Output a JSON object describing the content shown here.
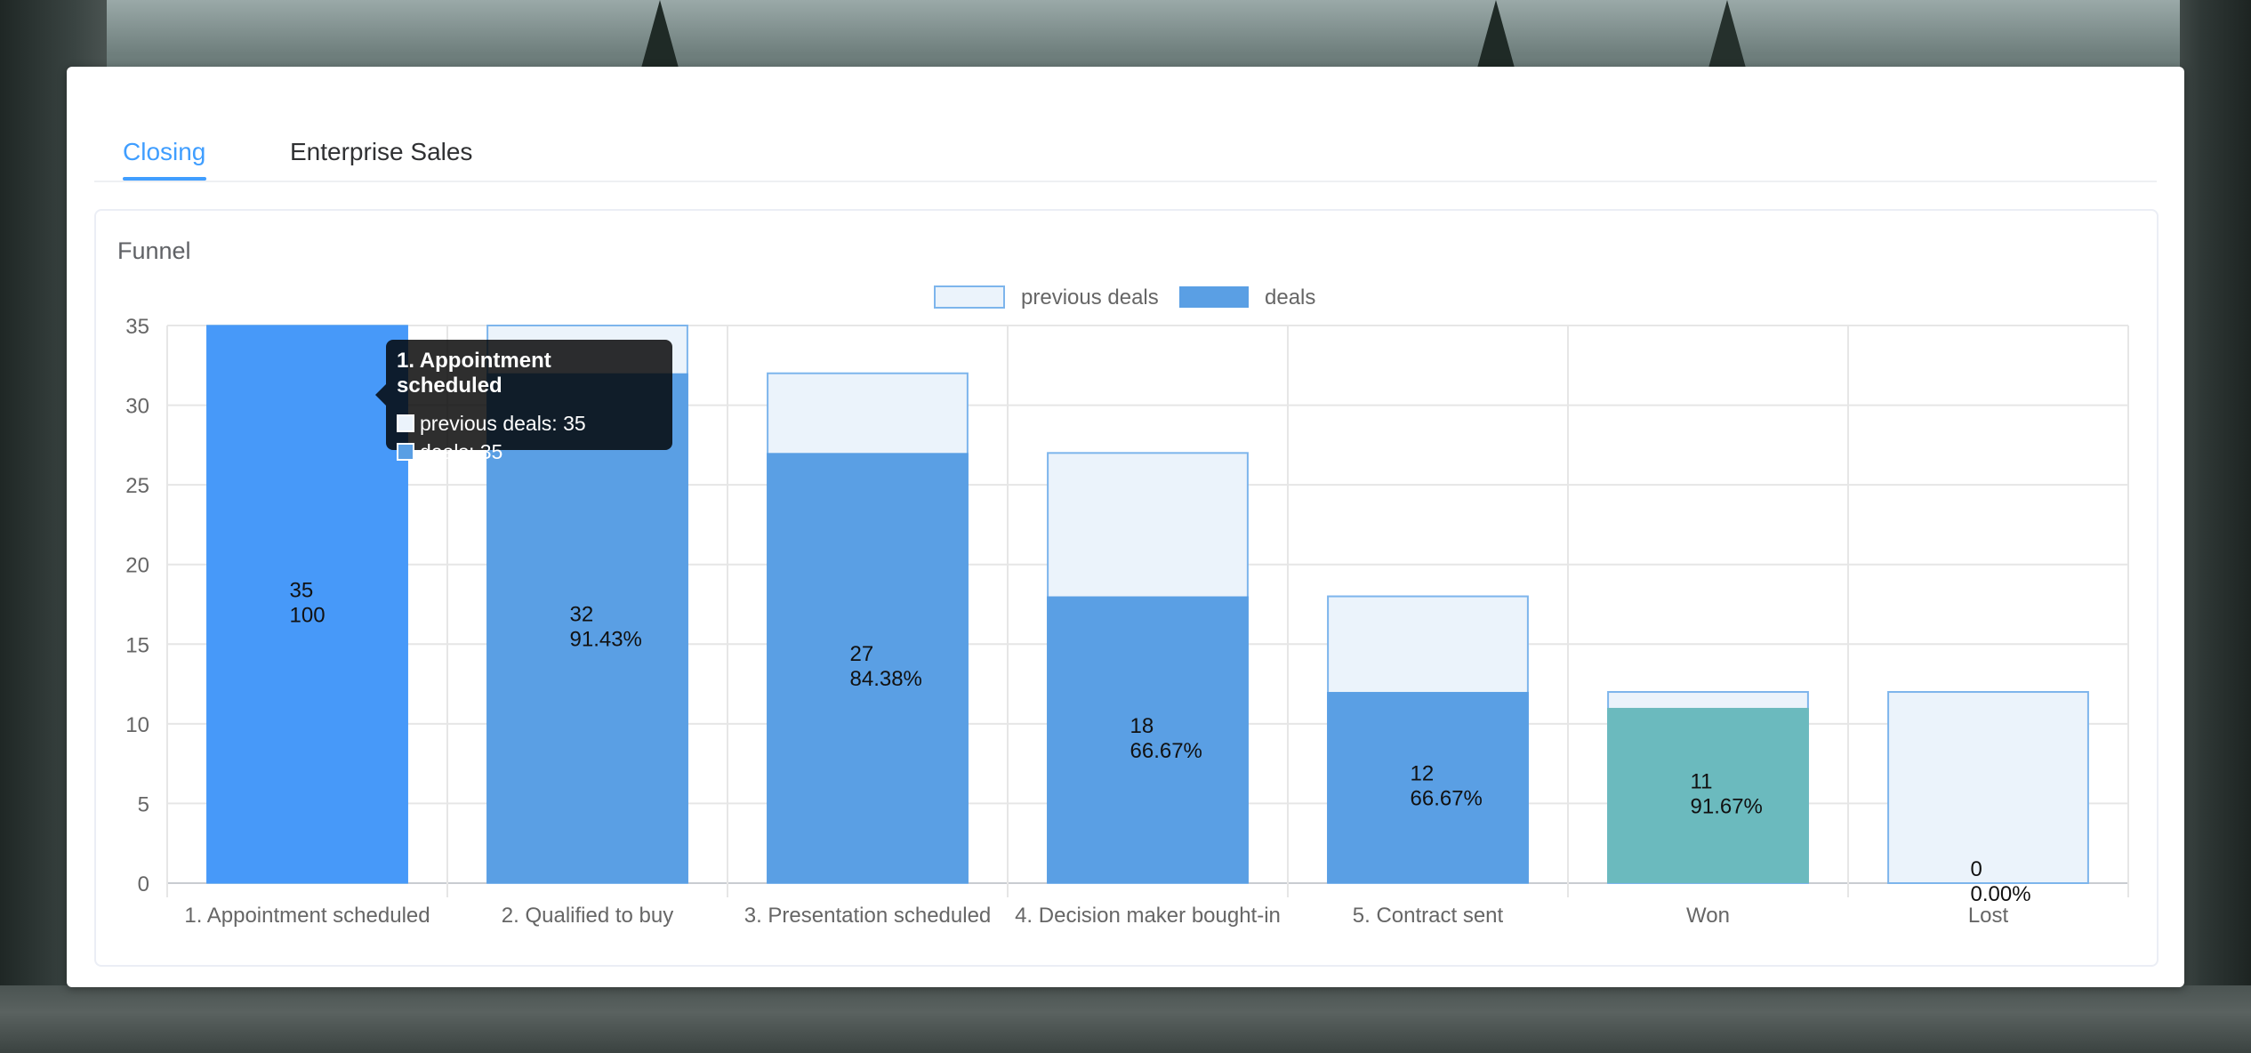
{
  "tabs": [
    {
      "label": "Closing",
      "active": true
    },
    {
      "label": "Enterprise Sales",
      "active": false
    }
  ],
  "panel": {
    "title": "Funnel"
  },
  "colors": {
    "accent": "#409eff",
    "deals": "#5a9fe4",
    "deals_first": "#4799f9",
    "won": "#6bbabe",
    "previous_fill": "#ebf3fb",
    "previous_border": "#7db5ec"
  },
  "chart_data": {
    "type": "bar",
    "categories": [
      "1. Appointment scheduled",
      "2. Qualified to buy",
      "3. Presentation scheduled",
      "4. Decision maker bought-in",
      "5. Contract sent",
      "Won",
      "Lost"
    ],
    "series": [
      {
        "name": "previous deals",
        "values": [
          35,
          35,
          32,
          27,
          18,
          12,
          12
        ]
      },
      {
        "name": "deals",
        "values": [
          35,
          32,
          27,
          18,
          12,
          11,
          0
        ]
      }
    ],
    "data_labels": [
      "100",
      "91.43%",
      "84.38%",
      "66.67%",
      "66.67%",
      "91.67%",
      "0.00%"
    ],
    "ylim": [
      0,
      35
    ],
    "yticks": [
      0,
      5,
      10,
      15,
      20,
      25,
      30,
      35
    ],
    "grid": true,
    "legend_position": "top-center"
  },
  "tooltip": {
    "title": "1. Appointment scheduled",
    "rows": [
      {
        "label": "previous deals: 35"
      },
      {
        "label": "deals: 35"
      }
    ]
  }
}
